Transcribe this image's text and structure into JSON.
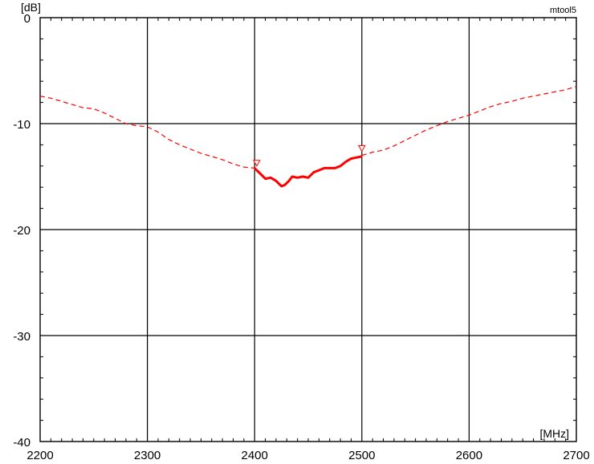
{
  "chart_data": {
    "type": "line",
    "xlabel": "[MHz]",
    "ylabel": "[dB]",
    "brand": "mtool5",
    "xlim": [
      2200,
      2700
    ],
    "ylim": [
      -40,
      0
    ],
    "x_ticks": [
      "2200",
      "2300",
      "2400",
      "2500",
      "2600",
      "2700"
    ],
    "y_ticks": [
      "0",
      "-10",
      "-20",
      "-30",
      "-40"
    ],
    "grid": true,
    "colors": {
      "trace": "#ff0000",
      "grid": "#000000",
      "background": "#ffffff"
    },
    "markers": [
      {
        "x": 2402,
        "y": -14.0
      },
      {
        "x": 2500,
        "y": -12.6
      }
    ],
    "series": [
      {
        "style": "dashed",
        "x": [
          2200,
          2210,
          2220,
          2230,
          2240,
          2250,
          2260,
          2270,
          2280,
          2290,
          2300,
          2310,
          2320,
          2330,
          2340,
          2350,
          2360,
          2370,
          2380,
          2390,
          2400
        ],
        "y": [
          -7.4,
          -7.6,
          -7.9,
          -8.2,
          -8.5,
          -8.6,
          -9.0,
          -9.5,
          -10.0,
          -10.2,
          -10.3,
          -10.8,
          -11.5,
          -12.0,
          -12.4,
          -12.8,
          -13.1,
          -13.4,
          -13.8,
          -14.1,
          -14.2
        ]
      },
      {
        "style": "solid",
        "x": [
          2400,
          2405,
          2410,
          2415,
          2420,
          2425,
          2428,
          2432,
          2435,
          2440,
          2445,
          2450,
          2455,
          2460,
          2465,
          2470,
          2475,
          2480,
          2485,
          2490,
          2495,
          2500
        ],
        "y": [
          -14.2,
          -14.7,
          -15.2,
          -15.1,
          -15.4,
          -15.9,
          -15.8,
          -15.4,
          -15.0,
          -15.1,
          -15.0,
          -15.1,
          -14.6,
          -14.4,
          -14.2,
          -14.2,
          -14.2,
          -14.0,
          -13.6,
          -13.3,
          -13.2,
          -13.1
        ]
      },
      {
        "style": "dashed",
        "x": [
          2500,
          2510,
          2520,
          2530,
          2540,
          2550,
          2560,
          2570,
          2580,
          2590,
          2600,
          2610,
          2620,
          2630,
          2640,
          2650,
          2660,
          2670,
          2680,
          2690,
          2700
        ],
        "y": [
          -13.0,
          -12.7,
          -12.5,
          -12.1,
          -11.6,
          -11.1,
          -10.6,
          -10.2,
          -9.8,
          -9.5,
          -9.2,
          -8.8,
          -8.4,
          -8.1,
          -7.9,
          -7.6,
          -7.4,
          -7.2,
          -7.0,
          -6.8,
          -6.5
        ]
      }
    ]
  }
}
